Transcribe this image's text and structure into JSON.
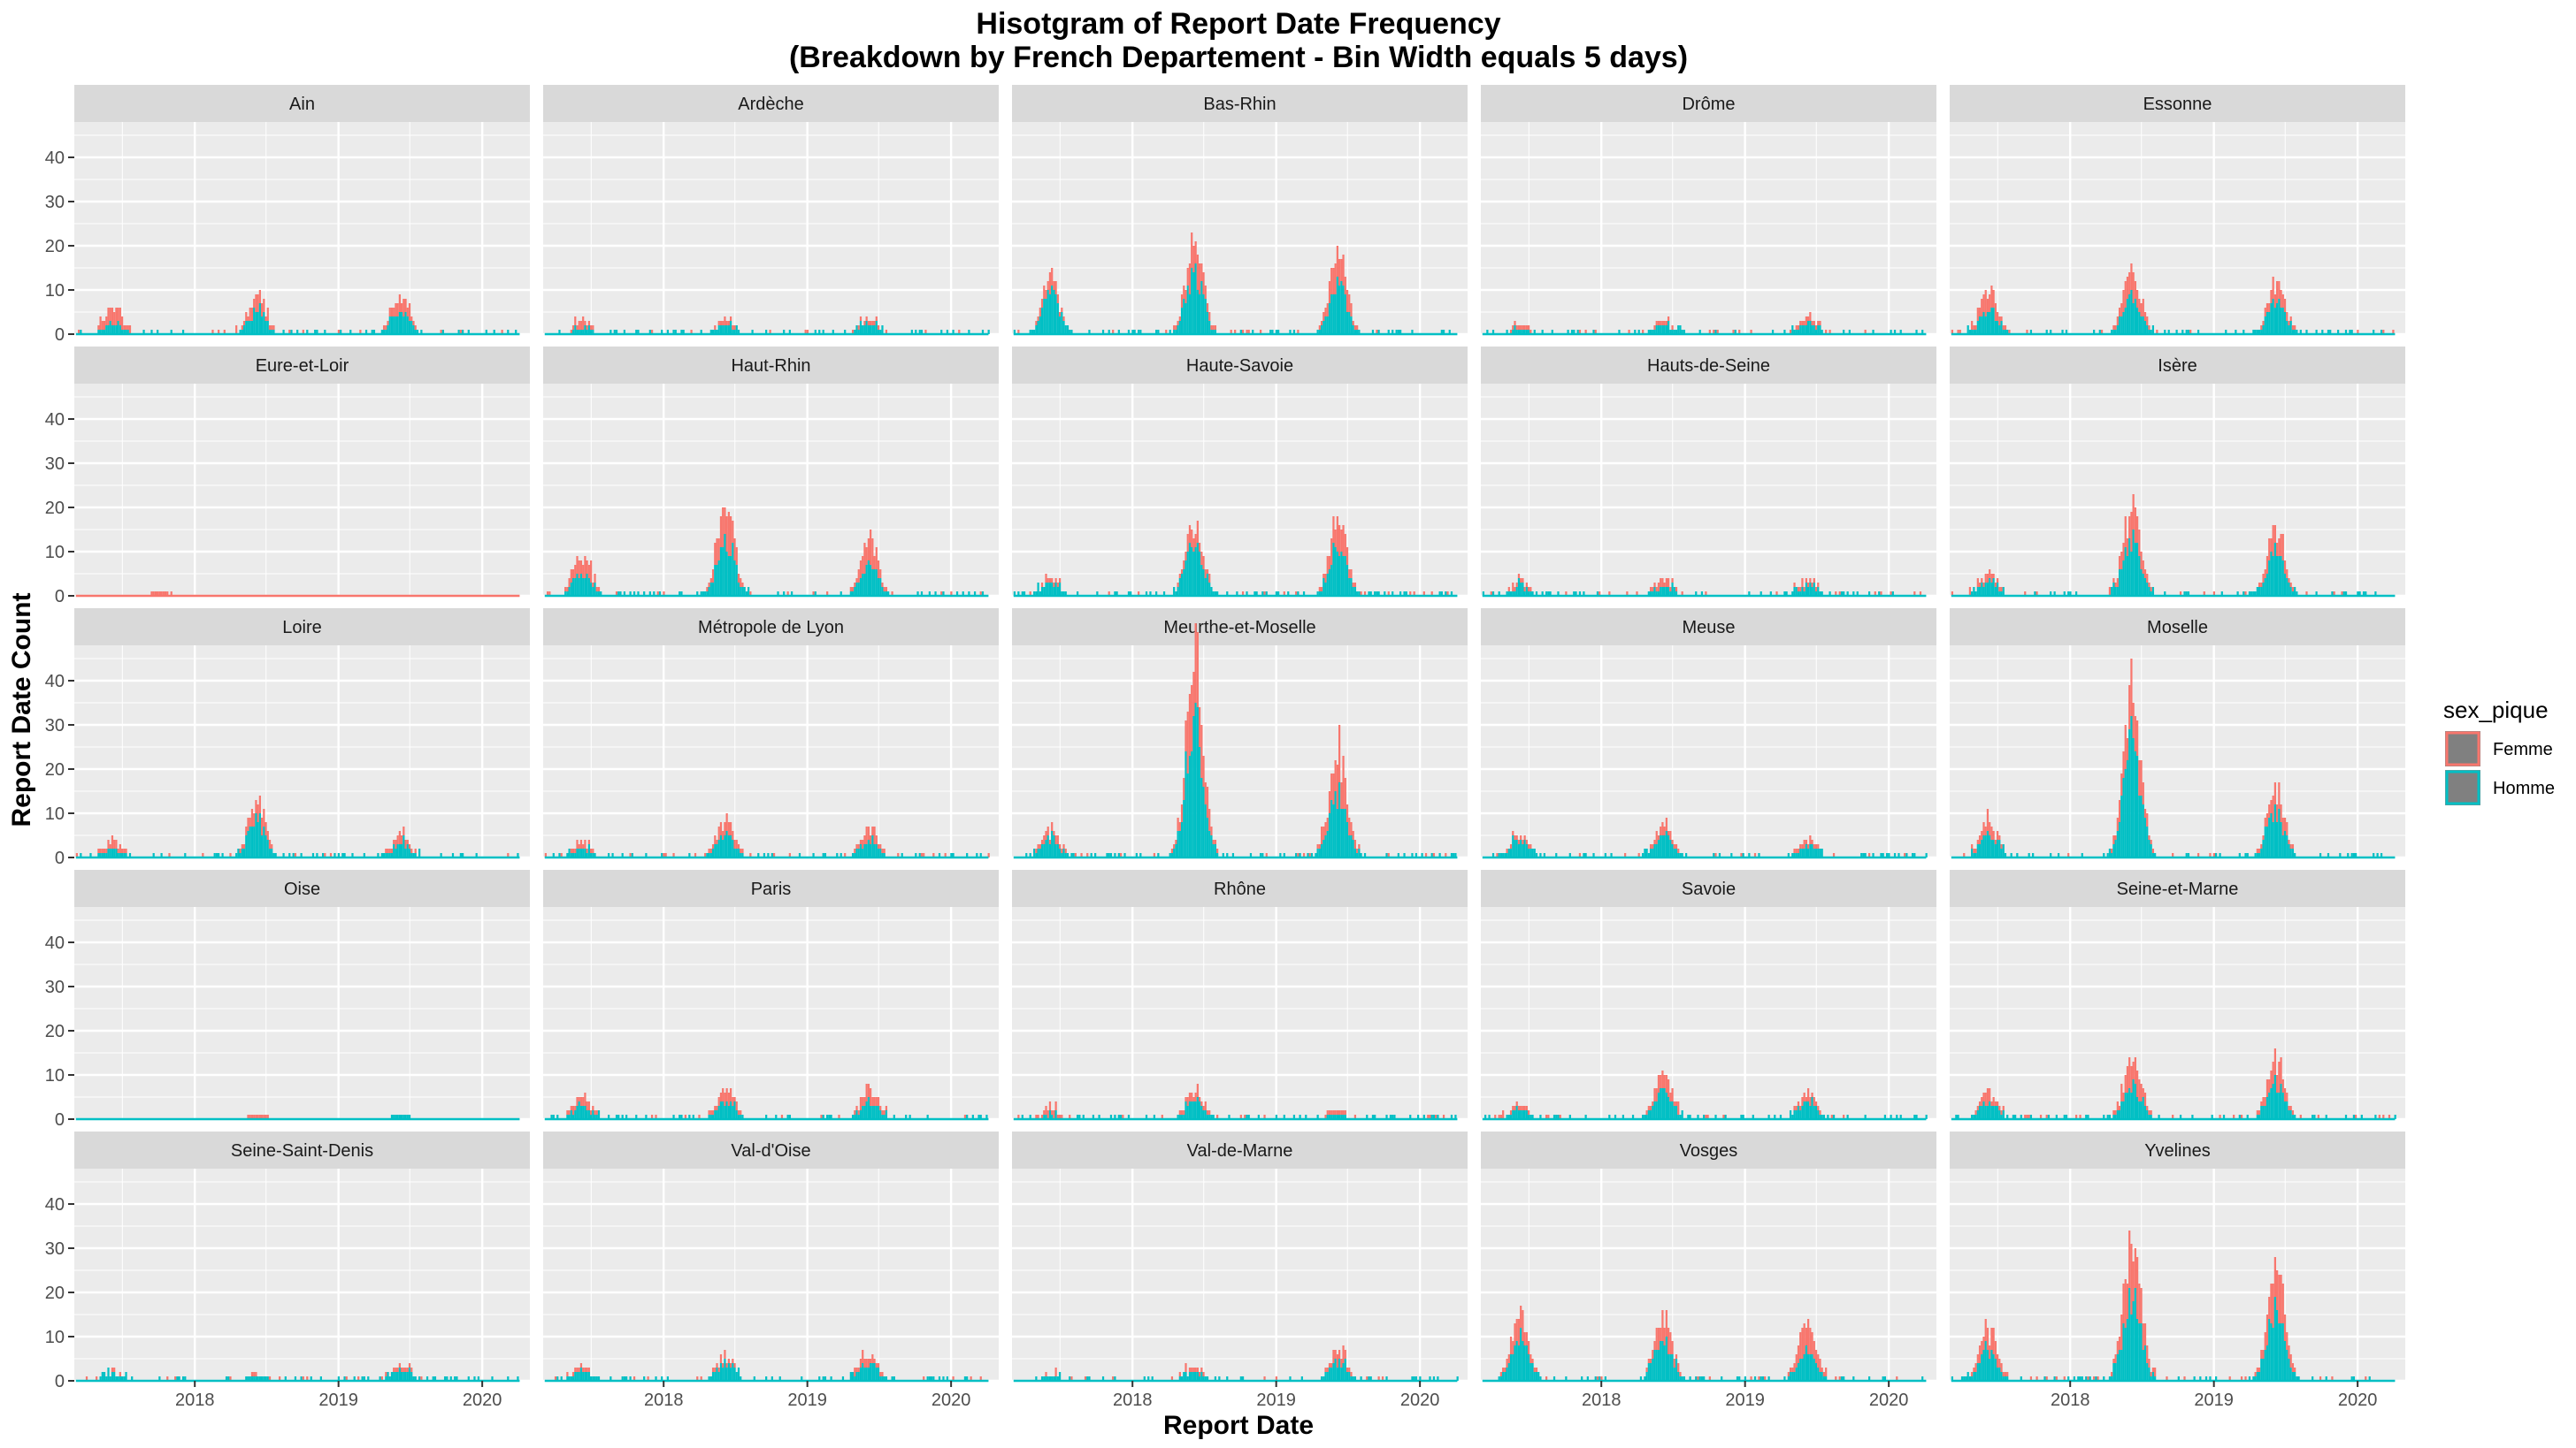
{
  "chart_data": {
    "type": "bar",
    "title": "Hisotgram of Report Date Frequency",
    "subtitle": "(Breakdown by French Departement - Bin Width equals 5 days)",
    "xlabel": "Report Date",
    "ylabel": "Report Date Count",
    "x_tick_labels": [
      "2018",
      "2019",
      "2020"
    ],
    "y_tick_labels": [
      "0",
      "10",
      "20",
      "30",
      "40"
    ],
    "x_range": [
      "2017-03-01",
      "2020-05-01"
    ],
    "ylim": [
      0,
      48
    ],
    "stacked": true,
    "legend": {
      "title": "sex_pique",
      "placement": "right",
      "entries": [
        {
          "label": "Femme",
          "color": "#F8766D"
        },
        {
          "label": "Homme",
          "color": "#00BFC4"
        }
      ]
    },
    "colors": {
      "panel_bg": "#EBEBEB",
      "strip_bg": "#D9D9D9",
      "grid": "#FFFFFF",
      "femme": "#F8766D",
      "homme": "#00BFC4"
    },
    "panels": [
      {
        "name": "Ain",
        "peaks": [
          [
            "2017-06-05",
            2.5,
            4
          ],
          [
            "2018-06-05",
            5,
            3.5
          ],
          [
            "2019-06-05",
            5,
            4
          ]
        ]
      },
      {
        "name": "Ardèche",
        "peaks": [
          [
            "2017-06-05",
            1,
            2
          ],
          [
            "2018-06-05",
            2,
            1
          ],
          [
            "2019-06-05",
            2.5,
            1
          ]
        ]
      },
      {
        "name": "Bas-Rhin",
        "peaks": [
          [
            "2017-06-05",
            9,
            3
          ],
          [
            "2018-06-05",
            13,
            7
          ],
          [
            "2019-06-05",
            11,
            7
          ]
        ]
      },
      {
        "name": "Drôme",
        "peaks": [
          [
            "2017-06-05",
            0.8,
            1
          ],
          [
            "2018-06-05",
            2,
            1
          ],
          [
            "2019-06-05",
            2.5,
            1.5
          ]
        ]
      },
      {
        "name": "Essonne",
        "peaks": [
          [
            "2017-06-05",
            5,
            4
          ],
          [
            "2018-06-05",
            8,
            6
          ],
          [
            "2019-06-05",
            7,
            4
          ]
        ]
      },
      {
        "name": "Eure-et-Loir",
        "peaks": [
          [
            "2017-10-05",
            0,
            1
          ]
        ]
      },
      {
        "name": "Haut-Rhin",
        "peaks": [
          [
            "2017-06-05",
            5,
            4
          ],
          [
            "2018-06-05",
            12,
            8
          ],
          [
            "2019-06-05",
            7,
            5
          ]
        ]
      },
      {
        "name": "Haute-Savoie",
        "peaks": [
          [
            "2017-06-05",
            3,
            1
          ],
          [
            "2018-06-05",
            12,
            4
          ],
          [
            "2019-06-05",
            10,
            6
          ]
        ]
      },
      {
        "name": "Hauts-de-Seine",
        "peaks": [
          [
            "2017-06-05",
            2,
            1
          ],
          [
            "2018-06-05",
            2,
            1.5
          ],
          [
            "2019-06-05",
            2,
            1.5
          ]
        ]
      },
      {
        "name": "Isère",
        "peaks": [
          [
            "2017-06-05",
            3,
            1.5
          ],
          [
            "2018-06-05",
            12,
            7
          ],
          [
            "2019-06-05",
            10,
            5
          ]
        ]
      },
      {
        "name": "Loire",
        "peaks": [
          [
            "2017-06-05",
            2,
            2
          ],
          [
            "2018-06-05",
            8,
            4
          ],
          [
            "2019-06-05",
            3,
            2
          ]
        ]
      },
      {
        "name": "Métropole de Lyon",
        "peaks": [
          [
            "2017-06-05",
            2,
            1.5
          ],
          [
            "2018-06-05",
            5,
            3
          ],
          [
            "2019-06-05",
            4,
            2.5
          ]
        ]
      },
      {
        "name": "Meurthe-et-Moselle",
        "peaks": [
          [
            "2017-06-05",
            4,
            2
          ],
          [
            "2018-06-05",
            30,
            15
          ],
          [
            "2019-06-05",
            14,
            10
          ]
        ]
      },
      {
        "name": "Meuse",
        "peaks": [
          [
            "2017-06-05",
            4,
            1
          ],
          [
            "2018-06-05",
            5,
            2
          ],
          [
            "2019-06-05",
            2.5,
            1.5
          ]
        ]
      },
      {
        "name": "Moselle",
        "peaks": [
          [
            "2017-06-05",
            5,
            3
          ],
          [
            "2018-06-05",
            25,
            10
          ],
          [
            "2019-06-05",
            10,
            5
          ]
        ]
      },
      {
        "name": "Oise",
        "peaks": [
          [
            "2018-06-05",
            0,
            1
          ],
          [
            "2019-06-05",
            1,
            0
          ]
        ]
      },
      {
        "name": "Paris",
        "peaks": [
          [
            "2017-06-05",
            3,
            2
          ],
          [
            "2018-06-05",
            4,
            3
          ],
          [
            "2019-06-05",
            4,
            3
          ]
        ]
      },
      {
        "name": "Rhône",
        "peaks": [
          [
            "2017-06-05",
            0.5,
            1.5
          ],
          [
            "2018-06-05",
            4,
            2
          ],
          [
            "2019-06-05",
            1,
            1
          ]
        ]
      },
      {
        "name": "Savoie",
        "peaks": [
          [
            "2017-06-05",
            2,
            1
          ],
          [
            "2018-06-05",
            7,
            4
          ],
          [
            "2019-06-05",
            4,
            2
          ]
        ]
      },
      {
        "name": "Seine-et-Marne",
        "peaks": [
          [
            "2017-06-05",
            4,
            2.5
          ],
          [
            "2018-06-05",
            7,
            6
          ],
          [
            "2019-06-05",
            8,
            5
          ]
        ]
      },
      {
        "name": "Seine-Saint-Denis",
        "peaks": [
          [
            "2017-06-05",
            1.5,
            0.5
          ],
          [
            "2018-06-05",
            1,
            0.5
          ],
          [
            "2019-06-05",
            2.5,
            1
          ]
        ]
      },
      {
        "name": "Val-d'Oise",
        "peaks": [
          [
            "2017-06-05",
            2,
            1
          ],
          [
            "2018-06-05",
            4,
            1.5
          ],
          [
            "2019-06-05",
            4,
            2
          ]
        ]
      },
      {
        "name": "Val-de-Marne",
        "peaks": [
          [
            "2017-06-05",
            1,
            0.5
          ],
          [
            "2018-06-05",
            2,
            1
          ],
          [
            "2019-06-05",
            4,
            2
          ]
        ]
      },
      {
        "name": "Vosges",
        "peaks": [
          [
            "2017-06-05",
            10,
            6
          ],
          [
            "2018-06-05",
            9,
            5
          ],
          [
            "2019-06-05",
            7,
            6
          ]
        ]
      },
      {
        "name": "Yvelines",
        "peaks": [
          [
            "2017-06-05",
            7,
            5
          ],
          [
            "2018-06-05",
            20,
            12
          ],
          [
            "2019-06-05",
            16,
            10
          ]
        ]
      }
    ]
  }
}
